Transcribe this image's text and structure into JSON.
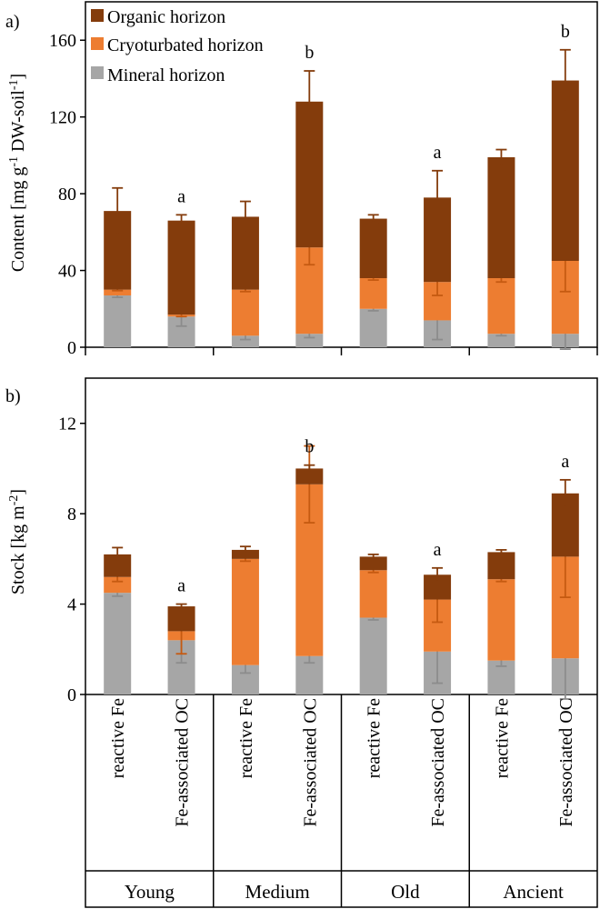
{
  "chart_data": [
    {
      "type": "bar",
      "stacked": true,
      "panel_label": "a)",
      "ylabel": "Content [mg g-1 DW-soil-1]",
      "ylabel_parts": [
        "Content [mg g",
        "-1",
        " DW-soil",
        "-1",
        "]"
      ],
      "ylim": [
        0,
        180
      ],
      "yticks": [
        "0",
        "40",
        "80",
        "120",
        "160"
      ],
      "ytick_values": [
        0,
        40,
        80,
        120,
        160
      ],
      "legend": [
        "Organic horizon",
        "Cryoturbated horizon",
        "Mineral horizon"
      ],
      "series": [
        {
          "name": "Mineral horizon",
          "color": "#a6a6a6",
          "err_color": "#8c8c8c",
          "values": [
            27,
            16,
            6,
            7,
            20,
            14,
            7,
            7
          ],
          "errors": [
            1,
            5,
            2,
            2,
            1,
            10,
            1,
            8
          ]
        },
        {
          "name": "Cryoturbated horizon",
          "color": "#ed7d31",
          "err_color": "#c55a11",
          "values": [
            3,
            1,
            24,
            45,
            16,
            20,
            29,
            38
          ],
          "errors": [
            0.5,
            1,
            1,
            9,
            1,
            7,
            2,
            16
          ]
        },
        {
          "name": "Organic horizon",
          "color": "#843c0c",
          "err_color": "#843c0c",
          "values": [
            41,
            49,
            38,
            76,
            31,
            44,
            63,
            94
          ],
          "errors": [
            12,
            3,
            8,
            16,
            2,
            14,
            4,
            16
          ]
        }
      ],
      "annotations": [
        "a",
        "b",
        "a",
        "b"
      ]
    },
    {
      "type": "bar",
      "stacked": true,
      "panel_label": "b)",
      "ylabel": "Stock [kg m-2]",
      "ylabel_parts": [
        "Stock [kg m",
        "-2",
        "]"
      ],
      "ylim": [
        0,
        14
      ],
      "yticks": [
        "0",
        "4",
        "8",
        "12"
      ],
      "ytick_values": [
        0,
        4,
        8,
        12
      ],
      "series": [
        {
          "name": "Mineral horizon",
          "color": "#a6a6a6",
          "err_color": "#8c8c8c",
          "values": [
            4.5,
            2.4,
            1.3,
            1.7,
            3.4,
            1.9,
            1.5,
            1.6
          ],
          "errors": [
            0.15,
            1.0,
            0.35,
            0.3,
            0.1,
            1.4,
            0.25,
            1.8
          ]
        },
        {
          "name": "Cryoturbated horizon",
          "color": "#ed7d31",
          "err_color": "#c55a11",
          "values": [
            0.7,
            0.4,
            4.7,
            7.6,
            2.1,
            2.3,
            3.6,
            4.5
          ],
          "errors": [
            0.2,
            1.0,
            0.1,
            1.7,
            0.1,
            1.0,
            0.1,
            1.8
          ]
        },
        {
          "name": "Organic horizon",
          "color": "#843c0c",
          "err_color": "#843c0c",
          "values": [
            1.0,
            1.1,
            0.4,
            0.7,
            0.6,
            1.1,
            1.2,
            2.8
          ],
          "errors": [
            0.3,
            0.1,
            0.15,
            0.15,
            0.1,
            0.3,
            0.1,
            0.6
          ]
        }
      ],
      "annotations": [
        "a",
        "b",
        "a",
        "a"
      ]
    }
  ],
  "categories": [
    "reactive Fe",
    "Fe-associated OC",
    "reactive Fe",
    "Fe-associated OC",
    "reactive Fe",
    "Fe-associated OC",
    "reactive Fe",
    "Fe-associated OC"
  ],
  "groups": [
    "Young",
    "Medium",
    "Old",
    "Ancient"
  ]
}
